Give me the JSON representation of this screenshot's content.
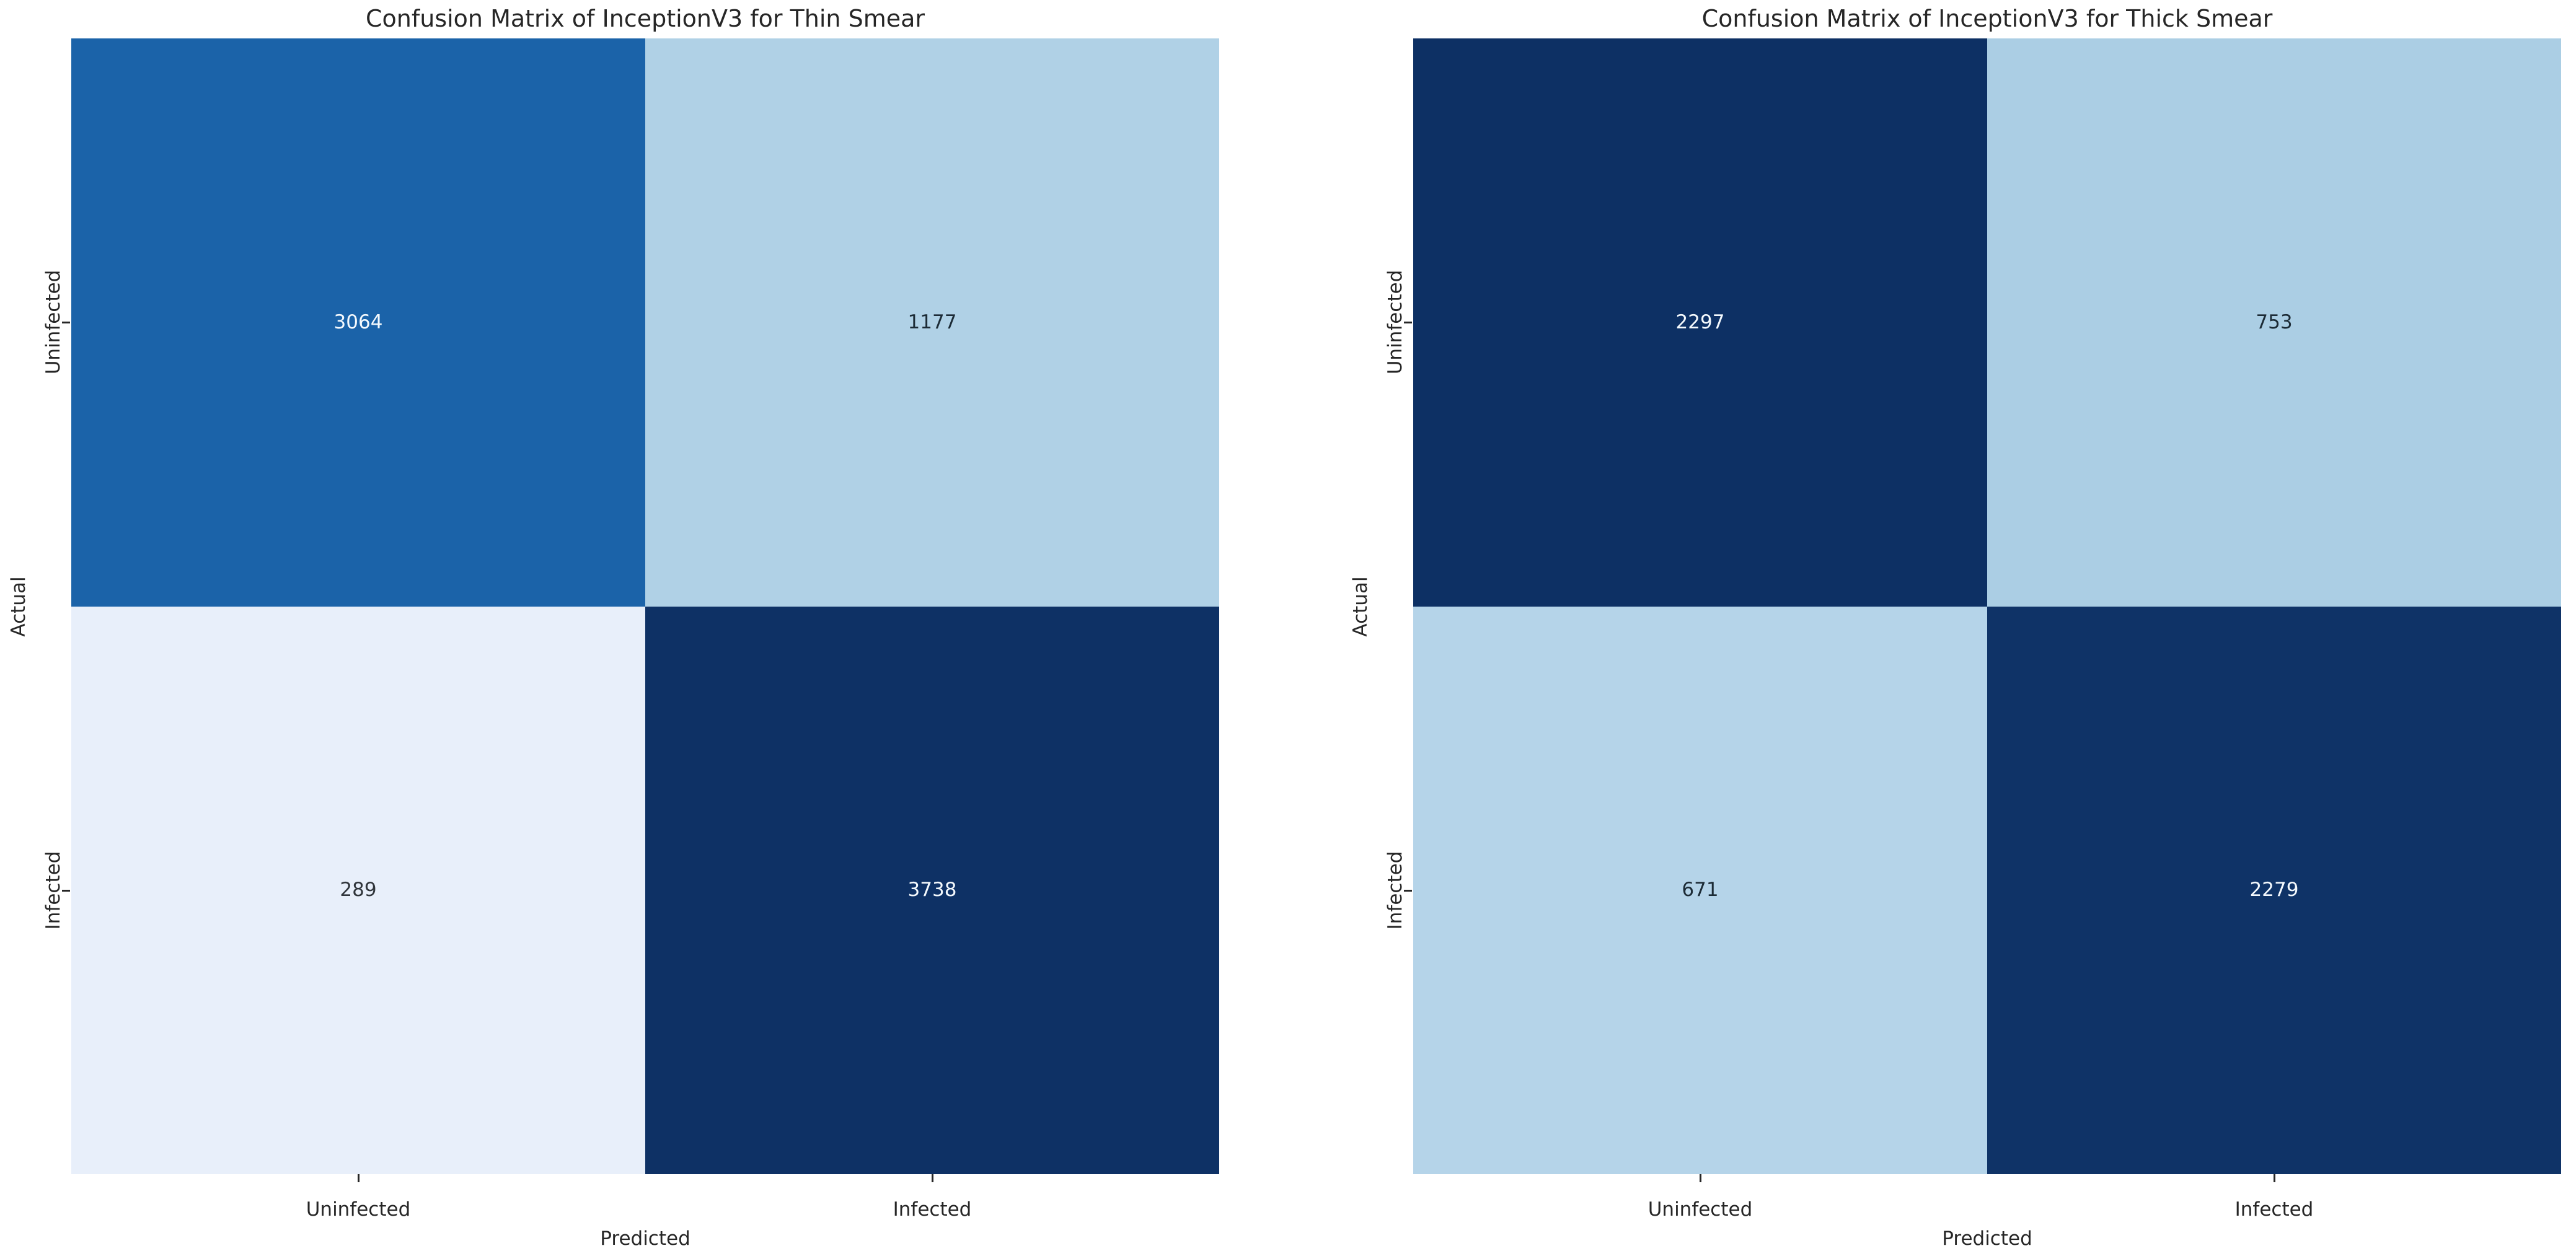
{
  "page": {
    "background": "#ffffff",
    "text_color": "#262626"
  },
  "charts": [
    {
      "title": "Confusion Matrix of InceptionV3 for Thin Smear",
      "xlabel": "Predicted",
      "ylabel": "Actual",
      "xticks": [
        "Uninfected",
        "Infected"
      ],
      "yticks": [
        "Uninfected",
        "Infected"
      ],
      "cells": [
        {
          "value": "3064",
          "bg": "#1b63a9",
          "fg": "#f4f9fd"
        },
        {
          "value": "1177",
          "bg": "#b0d1e6",
          "fg": "#1c2b36"
        },
        {
          "value": "289",
          "bg": "#e8effa",
          "fg": "#30353b"
        },
        {
          "value": "3738",
          "bg": "#0e3165",
          "fg": "#f4f9fd"
        }
      ]
    },
    {
      "title": "Confusion Matrix of InceptionV3 for Thick Smear",
      "xlabel": "Predicted",
      "ylabel": "Actual",
      "xticks": [
        "Uninfected",
        "Infected"
      ],
      "yticks": [
        "Uninfected",
        "Infected"
      ],
      "cells": [
        {
          "value": "2297",
          "bg": "#0d3064",
          "fg": "#f4f9fd"
        },
        {
          "value": "753",
          "bg": "#abcee4",
          "fg": "#1c2b36"
        },
        {
          "value": "671",
          "bg": "#b5d4e9",
          "fg": "#1c2b36"
        },
        {
          "value": "2279",
          "bg": "#0f3367",
          "fg": "#f4f9fd"
        }
      ]
    }
  ],
  "chart_data": [
    {
      "type": "heatmap",
      "title": "Confusion Matrix of InceptionV3 for Thin Smear",
      "xlabel": "Predicted",
      "ylabel": "Actual",
      "x_categories": [
        "Uninfected",
        "Infected"
      ],
      "y_categories": [
        "Uninfected",
        "Infected"
      ],
      "matrix": [
        [
          3064,
          1177
        ],
        [
          289,
          3738
        ]
      ],
      "colormap": "Blues",
      "colorbar": false,
      "annotations": true,
      "legend_position": "none"
    },
    {
      "type": "heatmap",
      "title": "Confusion Matrix of InceptionV3 for Thick Smear",
      "xlabel": "Predicted",
      "ylabel": "Actual",
      "x_categories": [
        "Uninfected",
        "Infected"
      ],
      "y_categories": [
        "Uninfected",
        "Infected"
      ],
      "matrix": [
        [
          2297,
          753
        ],
        [
          671,
          2279
        ]
      ],
      "colormap": "Blues",
      "colorbar": false,
      "annotations": true,
      "legend_position": "none"
    }
  ]
}
